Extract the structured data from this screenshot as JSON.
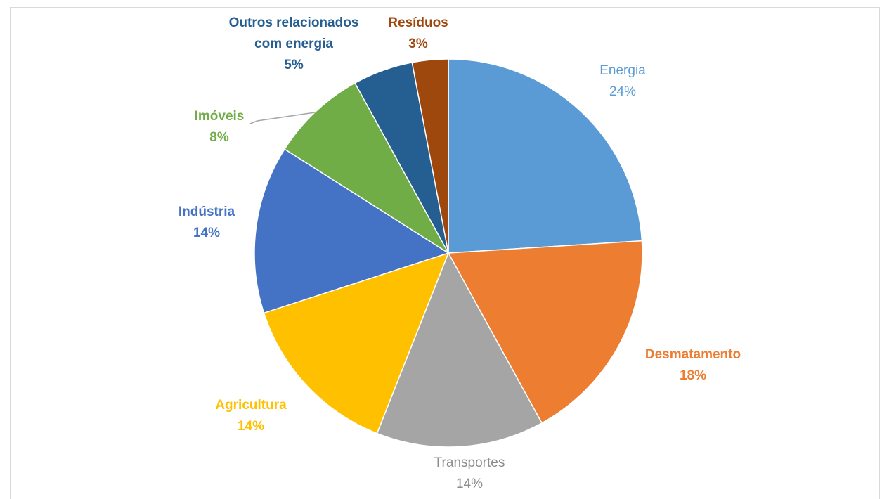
{
  "chart_data": {
    "type": "pie",
    "title": "",
    "slices": [
      {
        "label": "Energia",
        "value": 24,
        "value_label": "24%",
        "color": "#5B9BD5"
      },
      {
        "label": "Desmatamento",
        "value": 18,
        "value_label": "18%",
        "color": "#ED7D31"
      },
      {
        "label": "Transportes",
        "value": 14,
        "value_label": "14%",
        "color": "#A5A5A5"
      },
      {
        "label": "Agricultura",
        "value": 14,
        "value_label": "14%",
        "color": "#FFC000"
      },
      {
        "label": "Indústria",
        "value": 14,
        "value_label": "14%",
        "color": "#4472C4"
      },
      {
        "label": "Imóveis",
        "value": 8,
        "value_label": "8%",
        "color": "#70AD47"
      },
      {
        "label": "Outros relacionados com energia",
        "value": 5,
        "value_label": "5%",
        "color": "#255E91"
      },
      {
        "label": "Resíduos",
        "value": 3,
        "value_label": "3%",
        "color": "#9E480E"
      }
    ],
    "legend": "none",
    "data_labels": "category and percentage"
  }
}
